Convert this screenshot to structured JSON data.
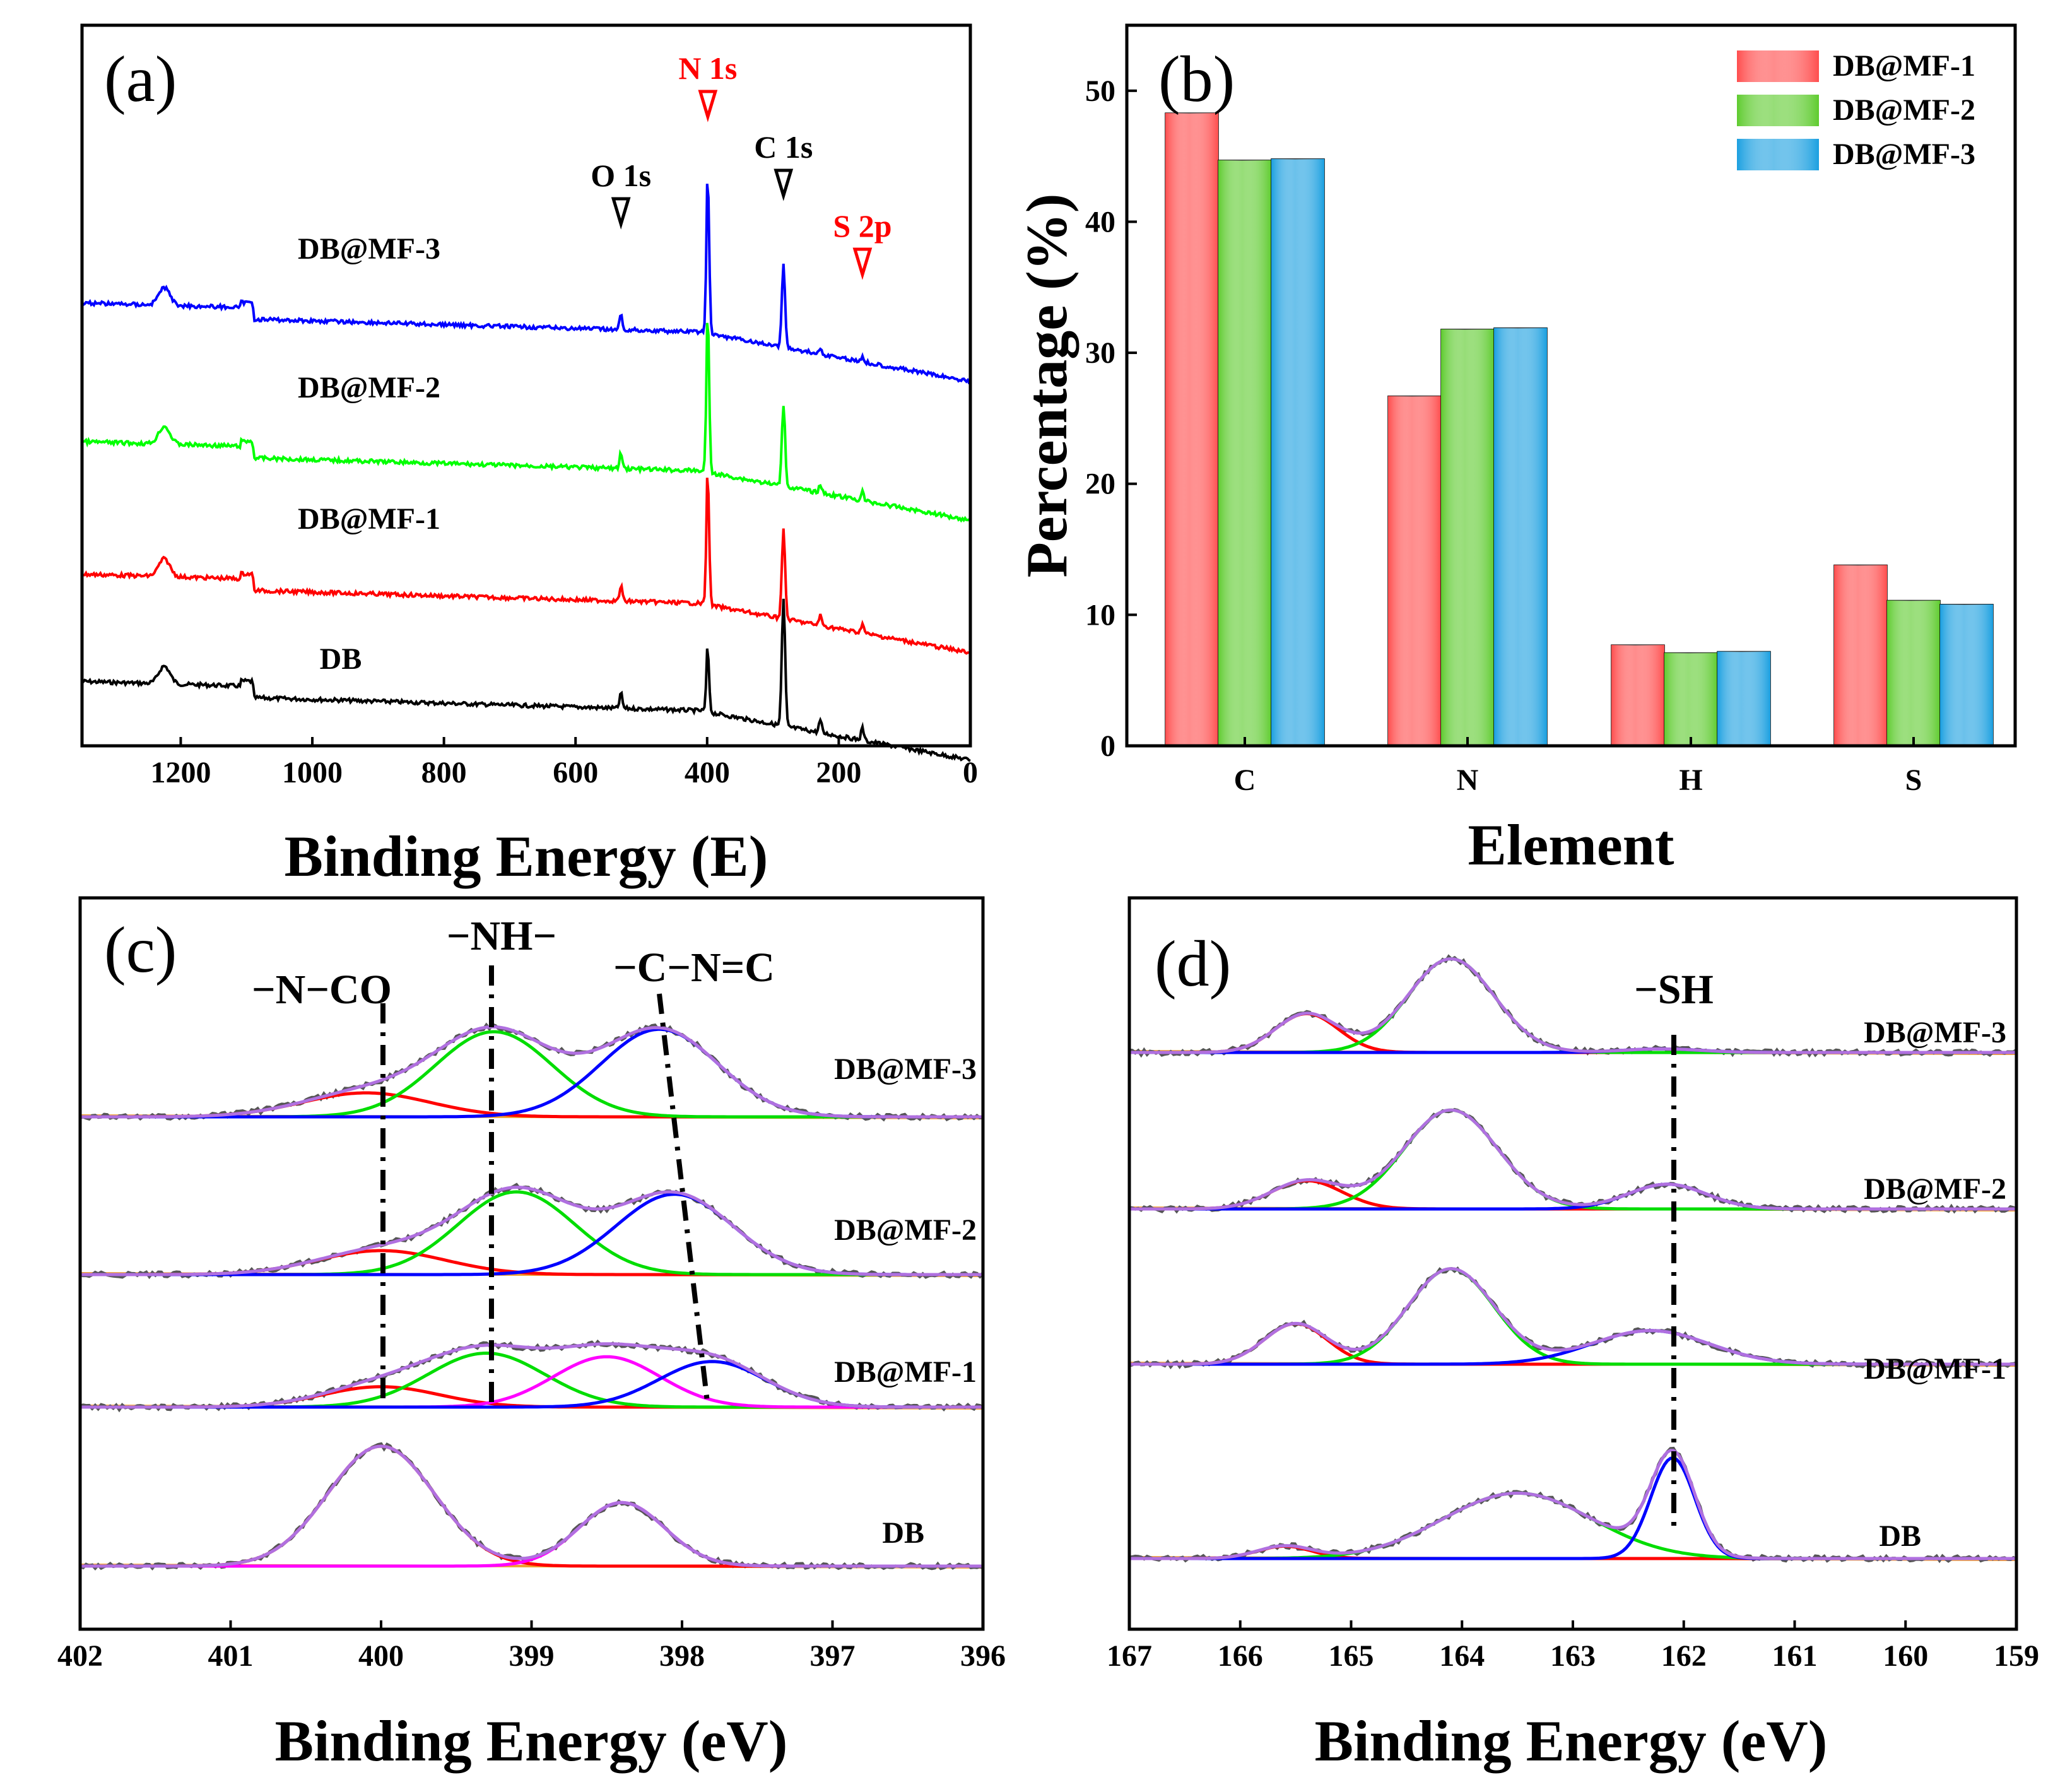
{
  "chart_data": [
    {
      "panel": "(a)",
      "type": "line",
      "xlabel": "Binding Energy (E)",
      "xlim": [
        1350,
        0
      ],
      "xticks": [
        "1200",
        "1000",
        "800",
        "600",
        "400",
        "200",
        "0"
      ],
      "xtick_values": [
        1200,
        1000,
        800,
        600,
        400,
        200,
        0
      ],
      "series": [
        {
          "name": "DB",
          "color": "#000000",
          "peaks": [
            {
              "x": 284,
              "h": 1.0
            },
            {
              "x": 399,
              "h": 0.45
            },
            {
              "x": 531,
              "h": 0.12
            },
            {
              "x": 228,
              "h": 0.1
            },
            {
              "x": 164,
              "h": 0.1
            }
          ]
        },
        {
          "name": "DB@MF-1",
          "color": "#ff0000",
          "peaks": [
            {
              "x": 284,
              "h": 0.7
            },
            {
              "x": 399,
              "h": 1.0
            },
            {
              "x": 531,
              "h": 0.12
            },
            {
              "x": 228,
              "h": 0.08
            },
            {
              "x": 164,
              "h": 0.08
            }
          ]
        },
        {
          "name": "DB@MF-2",
          "color": "#00ff00",
          "peaks": [
            {
              "x": 284,
              "h": 0.65
            },
            {
              "x": 399,
              "h": 1.2
            },
            {
              "x": 531,
              "h": 0.12
            },
            {
              "x": 228,
              "h": 0.07
            },
            {
              "x": 164,
              "h": 0.07
            }
          ]
        },
        {
          "name": "DB@MF-3",
          "color": "#0000ff",
          "peaks": [
            {
              "x": 284,
              "h": 0.65
            },
            {
              "x": 399,
              "h": 1.2
            },
            {
              "x": 531,
              "h": 0.12
            },
            {
              "x": 228,
              "h": 0.04
            },
            {
              "x": 164,
              "h": 0.04
            }
          ]
        }
      ],
      "peak_annotations": [
        {
          "label": "O 1s",
          "x": 531,
          "color": "#000000"
        },
        {
          "label": "N 1s",
          "x": 399,
          "color": "#ff0000"
        },
        {
          "label": "C 1s",
          "x": 284,
          "color": "#000000"
        },
        {
          "label": "S 2p",
          "x": 164,
          "color": "#ff0000"
        }
      ]
    },
    {
      "panel": "(b)",
      "type": "bar",
      "xlabel": "Element",
      "ylabel": "Percentage (%)",
      "ylim": [
        0,
        55
      ],
      "yticks": [
        "0",
        "10",
        "20",
        "30",
        "40",
        "50"
      ],
      "ytick_values": [
        0,
        10,
        20,
        30,
        40,
        50
      ],
      "categories": [
        "C",
        "N",
        "H",
        "S"
      ],
      "series": [
        {
          "name": "DB@MF-1",
          "color": "#ff4d4d",
          "values": [
            48.3,
            26.7,
            7.7,
            13.8
          ]
        },
        {
          "name": "DB@MF-2",
          "color": "#5ecb2e",
          "values": [
            44.7,
            31.8,
            7.1,
            11.1
          ]
        },
        {
          "name": "DB@MF-3",
          "color": "#1a9fe0",
          "values": [
            44.8,
            31.9,
            7.2,
            10.8
          ]
        }
      ]
    },
    {
      "panel": "(c)",
      "type": "line",
      "xlabel": "Binding Energy (eV)",
      "xlim": [
        402,
        396
      ],
      "xticks": [
        "402",
        "401",
        "400",
        "399",
        "398",
        "397",
        "396"
      ],
      "xtick_values": [
        402,
        401,
        400,
        399,
        398,
        397,
        396
      ],
      "series": [
        {
          "name": "DB",
          "components": [
            {
              "color": "#ff0000",
              "center": 400.0,
              "height": 1.0,
              "width": 0.5
            },
            {
              "color": "#ff00ff",
              "center": 398.4,
              "height": 0.53,
              "width": 0.4
            }
          ]
        },
        {
          "name": "DB@MF-1",
          "components": [
            {
              "color": "#ff0000",
              "center": 400.0,
              "height": 0.17,
              "width": 0.55
            },
            {
              "color": "#00dd00",
              "center": 399.3,
              "height": 0.45,
              "width": 0.55
            },
            {
              "color": "#ff00ff",
              "center": 398.5,
              "height": 0.42,
              "width": 0.5
            },
            {
              "color": "#0000ff",
              "center": 397.8,
              "height": 0.38,
              "width": 0.5
            }
          ]
        },
        {
          "name": "DB@MF-2",
          "components": [
            {
              "color": "#ff0000",
              "center": 400.0,
              "height": 0.2,
              "width": 0.6
            },
            {
              "color": "#00dd00",
              "center": 399.1,
              "height": 0.69,
              "width": 0.55
            },
            {
              "color": "#0000ff",
              "center": 398.05,
              "height": 0.67,
              "width": 0.55
            }
          ]
        },
        {
          "name": "DB@MF-3",
          "components": [
            {
              "color": "#ff0000",
              "center": 400.1,
              "height": 0.2,
              "width": 0.6
            },
            {
              "color": "#00dd00",
              "center": 399.25,
              "height": 0.71,
              "width": 0.55
            },
            {
              "color": "#0000ff",
              "center": 398.15,
              "height": 0.73,
              "width": 0.55
            }
          ]
        }
      ],
      "annotations": [
        "−N−CO",
        "−NH−",
        "−C−N=C"
      ]
    },
    {
      "panel": "(d)",
      "type": "line",
      "xlabel": "Binding Energy (eV)",
      "xlim": [
        167,
        159
      ],
      "xticks": [
        "167",
        "166",
        "165",
        "164",
        "163",
        "162",
        "161",
        "160",
        "159"
      ],
      "xtick_values": [
        167,
        166,
        165,
        164,
        163,
        162,
        161,
        160,
        159
      ],
      "series": [
        {
          "name": "DB",
          "components": [
            {
              "color": "#ff0000",
              "center": 165.6,
              "height": 0.07,
              "width": 0.35
            },
            {
              "color": "#00dd00",
              "center": 163.5,
              "height": 0.37,
              "width": 0.95
            },
            {
              "color": "#0000ff",
              "center": 162.1,
              "height": 0.57,
              "width": 0.28
            }
          ]
        },
        {
          "name": "DB@MF-1",
          "components": [
            {
              "color": "#ff0000",
              "center": 165.5,
              "height": 0.23,
              "width": 0.4
            },
            {
              "color": "#00dd00",
              "center": 164.1,
              "height": 0.54,
              "width": 0.55
            },
            {
              "color": "#0000ff",
              "center": 162.3,
              "height": 0.19,
              "width": 0.75
            }
          ]
        },
        {
          "name": "DB@MF-2",
          "components": [
            {
              "color": "#ff0000",
              "center": 165.4,
              "height": 0.16,
              "width": 0.45
            },
            {
              "color": "#00dd00",
              "center": 164.1,
              "height": 0.56,
              "width": 0.6
            },
            {
              "color": "#0000ff",
              "center": 162.15,
              "height": 0.14,
              "width": 0.5
            }
          ]
        },
        {
          "name": "DB@MF-3",
          "components": [
            {
              "color": "#ff0000",
              "center": 165.4,
              "height": 0.22,
              "width": 0.4
            },
            {
              "color": "#00dd00",
              "center": 164.1,
              "height": 0.53,
              "width": 0.55
            },
            {
              "color": "#0000ff",
              "center": 162.2,
              "height": 0.02,
              "width": 0.5
            }
          ]
        }
      ],
      "annotations": [
        "−SH"
      ]
    }
  ]
}
